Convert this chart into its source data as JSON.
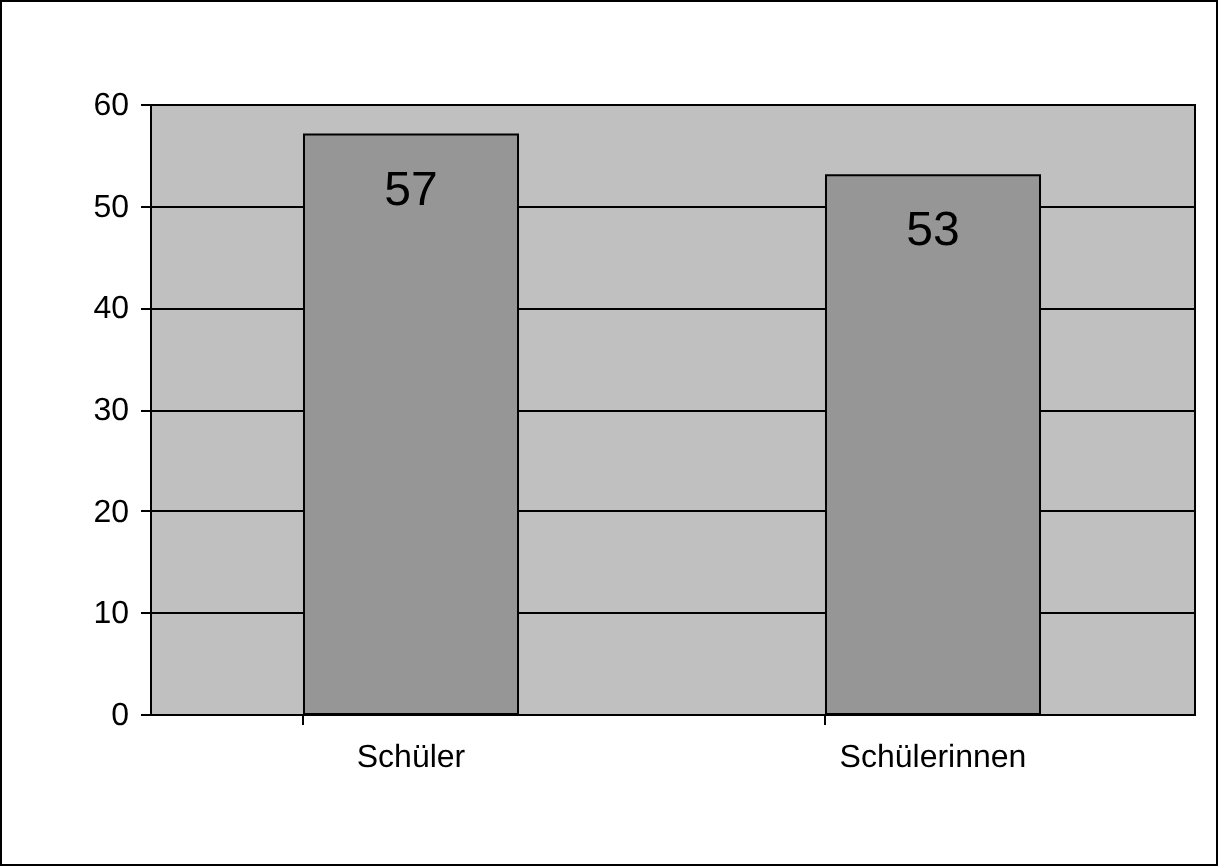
{
  "chart_data": {
    "type": "bar",
    "categories": [
      "Schüler",
      "Schülerinnen"
    ],
    "values": [
      57,
      53
    ],
    "color": "#969696",
    "ylim": [
      0,
      60
    ],
    "yticks": [
      0,
      10,
      20,
      30,
      40,
      50,
      60
    ],
    "grid": "y",
    "data_labels": true
  }
}
